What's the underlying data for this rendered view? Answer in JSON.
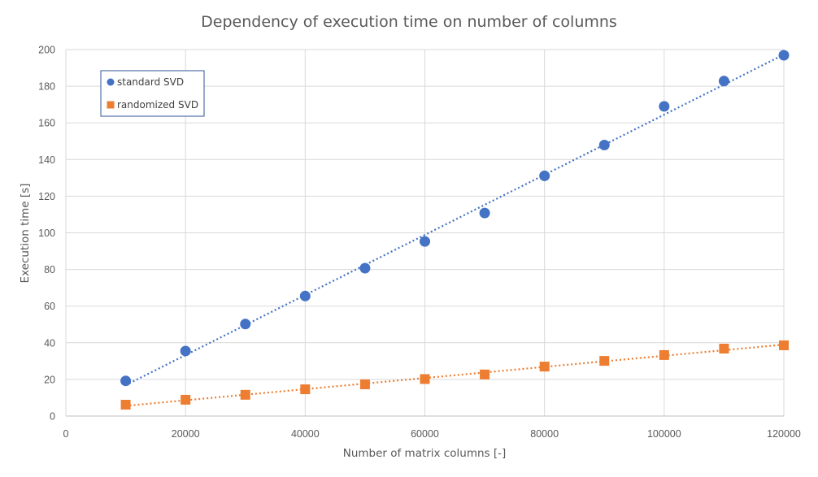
{
  "chart_data": {
    "type": "scatter",
    "title": "Dependency of execution time on number of columns",
    "xlabel": "Number of matrix columns [-]",
    "ylabel": "Execution time [s]",
    "xlim": [
      0,
      120000
    ],
    "ylim": [
      0,
      200
    ],
    "xticks": [
      0,
      20000,
      40000,
      60000,
      80000,
      100000,
      120000
    ],
    "yticks": [
      0,
      20,
      40,
      60,
      80,
      100,
      120,
      140,
      160,
      180,
      200
    ],
    "x_tick_labels": [
      "0",
      "20000",
      "40000",
      "60000",
      "80000",
      "100000",
      "120000"
    ],
    "y_tick_labels": [
      "0",
      "20",
      "40",
      "60",
      "80",
      "100",
      "120",
      "140",
      "160",
      "180",
      "200"
    ],
    "grid": true,
    "legend_position": "top-left",
    "trendline": "linear, dotted",
    "series": [
      {
        "name": "standard SVD",
        "marker": "circle",
        "color": "#4472C4",
        "x": [
          10000,
          20000,
          30000,
          40000,
          50000,
          60000,
          70000,
          80000,
          90000,
          100000,
          110000,
          120000
        ],
        "y": [
          19.2,
          35.5,
          50.2,
          65.5,
          80.7,
          95.3,
          110.8,
          131.1,
          147.9,
          169.0,
          182.8,
          196.9
        ]
      },
      {
        "name": "randomized SVD",
        "marker": "square",
        "color": "#ED7D31",
        "x": [
          10000,
          20000,
          30000,
          40000,
          50000,
          60000,
          70000,
          80000,
          90000,
          100000,
          110000,
          120000
        ],
        "y": [
          6.2,
          8.9,
          11.6,
          14.6,
          17.3,
          20.2,
          22.7,
          27.0,
          30.1,
          33.3,
          36.8,
          38.6
        ]
      }
    ]
  }
}
